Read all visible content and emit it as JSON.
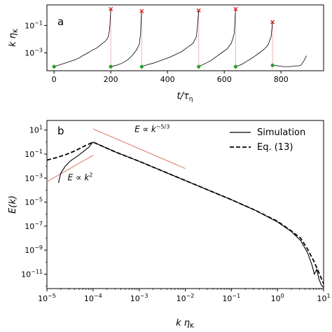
{
  "chart_data": [
    {
      "type": "line",
      "panel_label": "a",
      "xlabel": "t/τ_η",
      "ylabel": "k η_K",
      "xlim": [
        -25,
        950
      ],
      "ylim_log10": [
        -4.3,
        0.5
      ],
      "y_scale": "log",
      "x_ticks": [
        0,
        200,
        400,
        600,
        800
      ],
      "x_tick_labels": [
        "0",
        "200",
        "400",
        "600",
        "800"
      ],
      "y_ticks_log10": [
        -3,
        -1
      ],
      "y_tick_labels": [
        {
          "base": "10",
          "exp": "−3"
        },
        {
          "base": "10",
          "exp": "−1"
        }
      ],
      "grid": false,
      "trajectory_log10": [
        [
          0,
          -4.0
        ],
        [
          15,
          -3.9
        ],
        [
          30,
          -3.8
        ],
        [
          45,
          -3.7
        ],
        [
          60,
          -3.6
        ],
        [
          75,
          -3.5
        ],
        [
          90,
          -3.35
        ],
        [
          105,
          -3.15
        ],
        [
          120,
          -3.0
        ],
        [
          135,
          -2.8
        ],
        [
          150,
          -2.65
        ],
        [
          165,
          -2.4
        ],
        [
          180,
          -2.15
        ],
        [
          190,
          -1.9
        ],
        [
          196,
          -1.3
        ],
        [
          198,
          -0.6
        ],
        [
          200,
          0.2
        ],
        [
          200,
          -4.0
        ],
        [
          220,
          -3.9
        ],
        [
          240,
          -3.75
        ],
        [
          260,
          -3.5
        ],
        [
          275,
          -3.2
        ],
        [
          290,
          -2.8
        ],
        [
          300,
          -2.4
        ],
        [
          305,
          -1.6
        ],
        [
          307,
          -0.6
        ],
        [
          309,
          0.05
        ],
        [
          309,
          -4.0
        ],
        [
          330,
          -3.85
        ],
        [
          350,
          -3.75
        ],
        [
          370,
          -3.6
        ],
        [
          390,
          -3.45
        ],
        [
          410,
          -3.3
        ],
        [
          430,
          -3.1
        ],
        [
          450,
          -2.9
        ],
        [
          470,
          -2.6
        ],
        [
          490,
          -2.3
        ],
        [
          502,
          -1.8
        ],
        [
          506,
          -0.9
        ],
        [
          510,
          0.1
        ],
        [
          510,
          -4.0
        ],
        [
          530,
          -3.8
        ],
        [
          550,
          -3.6
        ],
        [
          570,
          -3.3
        ],
        [
          590,
          -3.0
        ],
        [
          610,
          -2.7
        ],
        [
          625,
          -2.3
        ],
        [
          635,
          -1.6
        ],
        [
          640,
          0.2
        ],
        [
          640,
          -4.0
        ],
        [
          660,
          -3.85
        ],
        [
          680,
          -3.6
        ],
        [
          700,
          -3.35
        ],
        [
          720,
          -3.05
        ],
        [
          740,
          -2.75
        ],
        [
          755,
          -2.4
        ],
        [
          765,
          -1.8
        ],
        [
          770,
          -0.75
        ],
        [
          770,
          -3.9
        ],
        [
          790,
          -3.95
        ],
        [
          810,
          -4.0
        ],
        [
          830,
          -4.0
        ],
        [
          850,
          -3.95
        ],
        [
          860,
          -3.95
        ],
        [
          870,
          -3.9
        ],
        [
          880,
          -3.6
        ],
        [
          890,
          -3.2
        ]
      ],
      "start_markers": {
        "color": "#2ca02c",
        "points_log10": [
          [
            0,
            -4.0
          ],
          [
            200,
            -4.0
          ],
          [
            309,
            -4.0
          ],
          [
            510,
            -4.0
          ],
          [
            640,
            -4.0
          ],
          [
            770,
            -3.9
          ]
        ]
      },
      "end_markers": {
        "color": "#d62728",
        "points_log10": [
          [
            200,
            0.2
          ],
          [
            309,
            0.05
          ],
          [
            510,
            0.1
          ],
          [
            640,
            0.2
          ],
          [
            770,
            -0.75
          ]
        ]
      },
      "vline_color": "#f2a0a0"
    },
    {
      "type": "line",
      "panel_label": "b",
      "xlabel": "k η_K",
      "ylabel": "E(k)",
      "x_scale": "log",
      "y_scale": "log",
      "xlim_log10": [
        -5,
        1
      ],
      "ylim_log10": [
        -12.2,
        1.8
      ],
      "x_ticks_log10": [
        -5,
        -4,
        -3,
        -2,
        -1,
        0,
        1
      ],
      "x_tick_labels": [
        {
          "base": "10",
          "exp": "−5"
        },
        {
          "base": "10",
          "exp": "−4"
        },
        {
          "base": "10",
          "exp": "−3"
        },
        {
          "base": "10",
          "exp": "−2"
        },
        {
          "base": "10",
          "exp": "−1"
        },
        {
          "base": "10",
          "exp": "0"
        },
        {
          "base": "10",
          "exp": "1"
        }
      ],
      "y_ticks_log10": [
        -11,
        -9,
        -7,
        -5,
        -3,
        -1,
        1
      ],
      "y_tick_labels": [
        {
          "base": "10",
          "exp": "−11"
        },
        {
          "base": "10",
          "exp": "−9"
        },
        {
          "base": "10",
          "exp": "−7"
        },
        {
          "base": "10",
          "exp": "−5"
        },
        {
          "base": "10",
          "exp": "−3"
        },
        {
          "base": "10",
          "exp": "−1"
        },
        {
          "base": "10",
          "exp": "1"
        }
      ],
      "legend": {
        "placement": "top-right",
        "entries": [
          "Simulation",
          "Eq. (13)"
        ]
      },
      "grid": false,
      "series": [
        {
          "name": "Simulation",
          "style": "solid",
          "points_log10": [
            [
              -4.75,
              -3.4
            ],
            [
              -4.7,
              -2.6
            ],
            [
              -4.6,
              -2.0
            ],
            [
              -4.5,
              -1.6
            ],
            [
              -4.3,
              -1.05
            ],
            [
              -4.1,
              -0.45
            ],
            [
              -4.0,
              0.0
            ],
            [
              -3.5,
              -0.85
            ],
            [
              -3.0,
              -1.6
            ],
            [
              -2.5,
              -2.4
            ],
            [
              -2.0,
              -3.2
            ],
            [
              -1.5,
              -4.0
            ],
            [
              -1.0,
              -4.8
            ],
            [
              -0.5,
              -5.65
            ],
            [
              0.0,
              -6.65
            ],
            [
              0.3,
              -7.45
            ],
            [
              0.5,
              -8.2
            ],
            [
              0.65,
              -9.2
            ],
            [
              0.75,
              -10.25
            ],
            [
              0.8,
              -11.0
            ],
            [
              0.85,
              -10.6
            ],
            [
              0.9,
              -11.4
            ],
            [
              0.95,
              -11.9
            ],
            [
              1.0,
              -12.1
            ]
          ]
        },
        {
          "name": "Eq. (13)",
          "style": "dashed",
          "points_log10": [
            [
              -5.0,
              -1.5
            ],
            [
              -4.8,
              -1.3
            ],
            [
              -4.6,
              -1.05
            ],
            [
              -4.4,
              -0.75
            ],
            [
              -4.2,
              -0.35
            ],
            [
              -4.0,
              0.0
            ],
            [
              -3.5,
              -0.85
            ],
            [
              -3.0,
              -1.6
            ],
            [
              -2.5,
              -2.4
            ],
            [
              -2.0,
              -3.2
            ],
            [
              -1.5,
              -4.0
            ],
            [
              -1.0,
              -4.8
            ],
            [
              -0.5,
              -5.65
            ],
            [
              0.0,
              -6.6
            ],
            [
              0.3,
              -7.4
            ],
            [
              0.5,
              -8.0
            ],
            [
              0.65,
              -8.9
            ],
            [
              0.8,
              -10.0
            ],
            [
              0.9,
              -10.9
            ],
            [
              1.0,
              -11.8
            ]
          ]
        }
      ],
      "reference_lines": [
        {
          "label": "E ∝ k^−5/3",
          "color": "#e08070",
          "points_log10": [
            [
              -4.0,
              1.1
            ],
            [
              -2.0,
              -2.2
            ]
          ]
        },
        {
          "label": "E ∝ k^2",
          "color": "#e08070",
          "points_log10": [
            [
              -5.0,
              -3.3
            ],
            [
              -4.0,
              -1.1
            ]
          ]
        }
      ],
      "annotations": [
        {
          "text": "E ∝ k",
          "sup": "−5/3",
          "anchor_log10": [
            -3.1,
            0.85
          ]
        },
        {
          "text": "E ∝ k",
          "sup": "2",
          "anchor_log10": [
            -4.55,
            -3.2
          ]
        }
      ]
    }
  ]
}
